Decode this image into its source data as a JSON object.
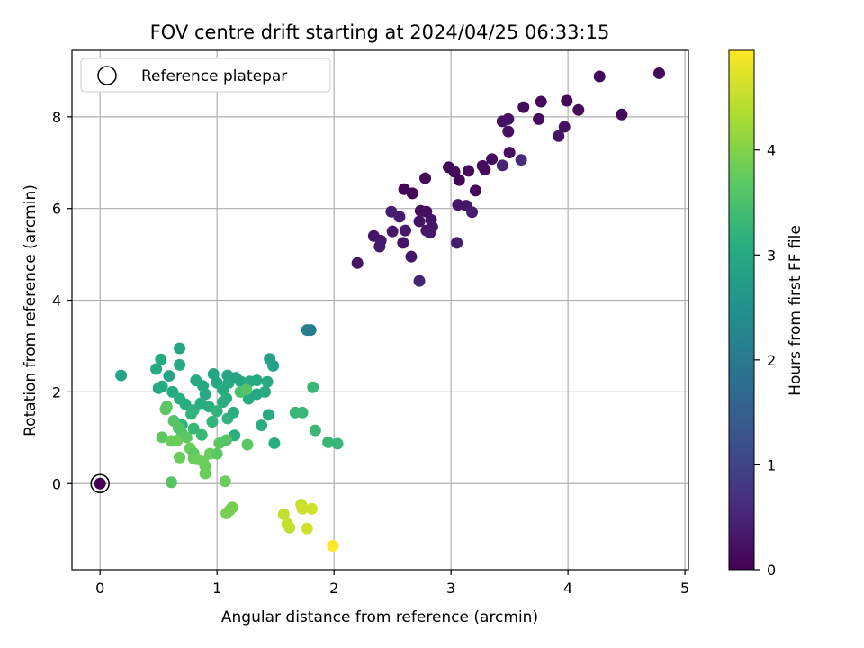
{
  "chart_data": {
    "type": "scatter",
    "title": "FOV centre drift starting at 2024/04/25 06:33:15",
    "xlabel": "Angular distance from reference (arcmin)",
    "ylabel": "Rotation from reference (arcmin)",
    "xlim": [
      -0.24,
      5.03
    ],
    "ylim": [
      -1.88,
      9.45
    ],
    "xticks": [
      0,
      1,
      2,
      3,
      4,
      5
    ],
    "yticks": [
      0,
      2,
      4,
      6,
      8
    ],
    "grid": true,
    "legend": {
      "placement": "top-left",
      "entries": [
        "Reference platepar"
      ]
    },
    "reference_point": {
      "x": 0,
      "y": 0,
      "label": "Reference platepar"
    },
    "colorbar": {
      "label": "Hours from first FF file",
      "colormap": "viridis",
      "range": [
        0,
        4.95
      ],
      "ticks": [
        0,
        1,
        2,
        3,
        4
      ]
    },
    "points": [
      [
        4.78,
        8.95,
        0.08
      ],
      [
        4.27,
        8.88,
        0.1
      ],
      [
        4.46,
        8.05,
        0.12
      ],
      [
        4.09,
        8.15,
        0.12
      ],
      [
        3.99,
        8.35,
        0.1
      ],
      [
        3.77,
        8.33,
        0.12
      ],
      [
        3.62,
        8.21,
        0.15
      ],
      [
        3.75,
        7.95,
        0.15
      ],
      [
        3.49,
        7.95,
        0.2
      ],
      [
        3.44,
        7.9,
        0.2
      ],
      [
        3.49,
        7.68,
        0.2
      ],
      [
        3.97,
        7.78,
        0.25
      ],
      [
        3.92,
        7.58,
        0.25
      ],
      [
        3.5,
        7.22,
        0.2
      ],
      [
        3.35,
        7.08,
        0.15
      ],
      [
        3.27,
        6.93,
        0.15
      ],
      [
        3.15,
        6.82,
        0.15
      ],
      [
        3.29,
        6.85,
        0.15
      ],
      [
        2.98,
        6.9,
        0.1
      ],
      [
        3.03,
        6.8,
        0.1
      ],
      [
        3.07,
        6.62,
        0.1
      ],
      [
        3.21,
        6.39,
        0.1
      ],
      [
        2.78,
        6.66,
        0.08
      ],
      [
        2.6,
        6.42,
        0.05
      ],
      [
        2.67,
        6.33,
        0.05
      ],
      [
        3.44,
        6.94,
        0.5
      ],
      [
        3.6,
        7.06,
        0.6
      ],
      [
        3.06,
        6.08,
        0.3
      ],
      [
        3.13,
        6.06,
        0.3
      ],
      [
        3.18,
        5.92,
        0.4
      ],
      [
        2.74,
        5.95,
        0.2
      ],
      [
        2.79,
        5.93,
        0.2
      ],
      [
        2.83,
        5.75,
        0.25
      ],
      [
        2.73,
        5.72,
        0.25
      ],
      [
        2.84,
        5.6,
        0.3
      ],
      [
        2.79,
        5.52,
        0.3
      ],
      [
        2.82,
        5.47,
        0.35
      ],
      [
        2.49,
        5.93,
        0.4
      ],
      [
        2.56,
        5.82,
        0.4
      ],
      [
        2.61,
        5.52,
        0.35
      ],
      [
        2.5,
        5.5,
        0.35
      ],
      [
        2.59,
        5.25,
        0.3
      ],
      [
        2.34,
        5.4,
        0.3
      ],
      [
        2.4,
        5.3,
        0.35
      ],
      [
        2.39,
        5.17,
        0.35
      ],
      [
        3.05,
        5.25,
        0.4
      ],
      [
        2.66,
        4.95,
        0.3
      ],
      [
        2.2,
        4.81,
        0.3
      ],
      [
        2.73,
        4.42,
        0.5
      ],
      [
        1.8,
        3.35,
        2.0
      ],
      [
        1.77,
        3.35,
        2.1
      ],
      [
        0.18,
        2.36,
        2.9
      ],
      [
        0.68,
        2.95,
        2.9
      ],
      [
        0.52,
        2.71,
        3.0
      ],
      [
        0.48,
        2.5,
        3.0
      ],
      [
        0.68,
        2.59,
        3.0
      ],
      [
        0.59,
        2.35,
        2.9
      ],
      [
        0.5,
        2.08,
        2.9
      ],
      [
        0.53,
        2.12,
        3.0
      ],
      [
        0.62,
        2.0,
        3.0
      ],
      [
        0.68,
        1.85,
        3.1
      ],
      [
        0.73,
        1.73,
        3.1
      ],
      [
        0.8,
        1.6,
        3.2
      ],
      [
        0.82,
        2.25,
        3.0
      ],
      [
        0.88,
        2.13,
        3.0
      ],
      [
        0.9,
        1.95,
        3.0
      ],
      [
        0.97,
        2.39,
        2.9
      ],
      [
        1.0,
        2.2,
        2.95
      ],
      [
        1.05,
        2.05,
        3.0
      ],
      [
        1.09,
        2.36,
        2.9
      ],
      [
        1.1,
        2.2,
        3.0
      ],
      [
        1.16,
        2.31,
        2.9
      ],
      [
        1.2,
        2.23,
        2.95
      ],
      [
        1.28,
        2.23,
        3.0
      ],
      [
        1.34,
        2.25,
        3.0
      ],
      [
        1.43,
        2.22,
        3.0
      ],
      [
        1.45,
        2.72,
        2.8
      ],
      [
        1.48,
        2.57,
        2.85
      ],
      [
        1.27,
        1.85,
        3.0
      ],
      [
        1.34,
        1.95,
        2.95
      ],
      [
        1.41,
        2.0,
        3.0
      ],
      [
        0.86,
        1.75,
        3.1
      ],
      [
        0.93,
        1.68,
        3.1
      ],
      [
        1.0,
        1.58,
        3.2
      ],
      [
        1.05,
        1.78,
        3.1
      ],
      [
        1.08,
        1.86,
        3.1
      ],
      [
        0.78,
        1.52,
        3.2
      ],
      [
        0.7,
        1.28,
        3.2
      ],
      [
        0.8,
        1.2,
        3.3
      ],
      [
        0.87,
        1.06,
        3.3
      ],
      [
        0.96,
        1.35,
        3.2
      ],
      [
        1.09,
        1.42,
        3.2
      ],
      [
        1.14,
        1.55,
        3.1
      ],
      [
        1.44,
        1.5,
        3.0
      ],
      [
        1.38,
        1.27,
        3.1
      ],
      [
        1.49,
        0.88,
        3.1
      ],
      [
        1.15,
        1.05,
        3.1
      ],
      [
        1.82,
        2.1,
        3.3
      ],
      [
        1.67,
        1.55,
        3.3
      ],
      [
        1.73,
        1.55,
        3.3
      ],
      [
        1.84,
        1.16,
        3.3
      ],
      [
        1.95,
        0.9,
        3.3
      ],
      [
        2.03,
        0.87,
        3.3
      ],
      [
        1.2,
        2.0,
        3.5
      ],
      [
        1.25,
        2.05,
        3.6
      ],
      [
        0.56,
        1.62,
        3.7
      ],
      [
        0.57,
        1.68,
        3.7
      ],
      [
        0.63,
        1.37,
        3.6
      ],
      [
        0.67,
        1.22,
        3.6
      ],
      [
        0.7,
        1.1,
        3.6
      ],
      [
        0.74,
        1.01,
        3.7
      ],
      [
        0.53,
        1.01,
        3.7
      ],
      [
        0.61,
        0.93,
        3.8
      ],
      [
        0.66,
        0.94,
        3.8
      ],
      [
        0.77,
        0.77,
        3.8
      ],
      [
        0.8,
        0.66,
        3.7
      ],
      [
        0.8,
        0.55,
        3.8
      ],
      [
        0.83,
        0.53,
        3.8
      ],
      [
        0.88,
        0.48,
        3.8
      ],
      [
        0.9,
        0.38,
        3.8
      ],
      [
        0.9,
        0.22,
        3.8
      ],
      [
        0.68,
        0.57,
        3.8
      ],
      [
        0.94,
        0.65,
        3.8
      ],
      [
        1.0,
        0.65,
        3.7
      ],
      [
        1.02,
        0.88,
        3.7
      ],
      [
        1.26,
        0.85,
        3.7
      ],
      [
        1.08,
        0.95,
        3.6
      ],
      [
        0.61,
        0.03,
        3.6
      ],
      [
        1.07,
        0.05,
        3.8
      ],
      [
        1.13,
        -0.52,
        3.9
      ],
      [
        1.11,
        -0.58,
        3.9
      ],
      [
        1.08,
        -0.65,
        3.9
      ],
      [
        1.57,
        -0.67,
        4.5
      ],
      [
        1.6,
        -0.88,
        4.5
      ],
      [
        1.62,
        -0.96,
        4.5
      ],
      [
        1.72,
        -0.46,
        4.5
      ],
      [
        1.73,
        -0.55,
        4.6
      ],
      [
        1.81,
        -0.55,
        4.6
      ],
      [
        1.77,
        -0.98,
        4.6
      ],
      [
        1.99,
        -1.36,
        4.95
      ]
    ]
  }
}
